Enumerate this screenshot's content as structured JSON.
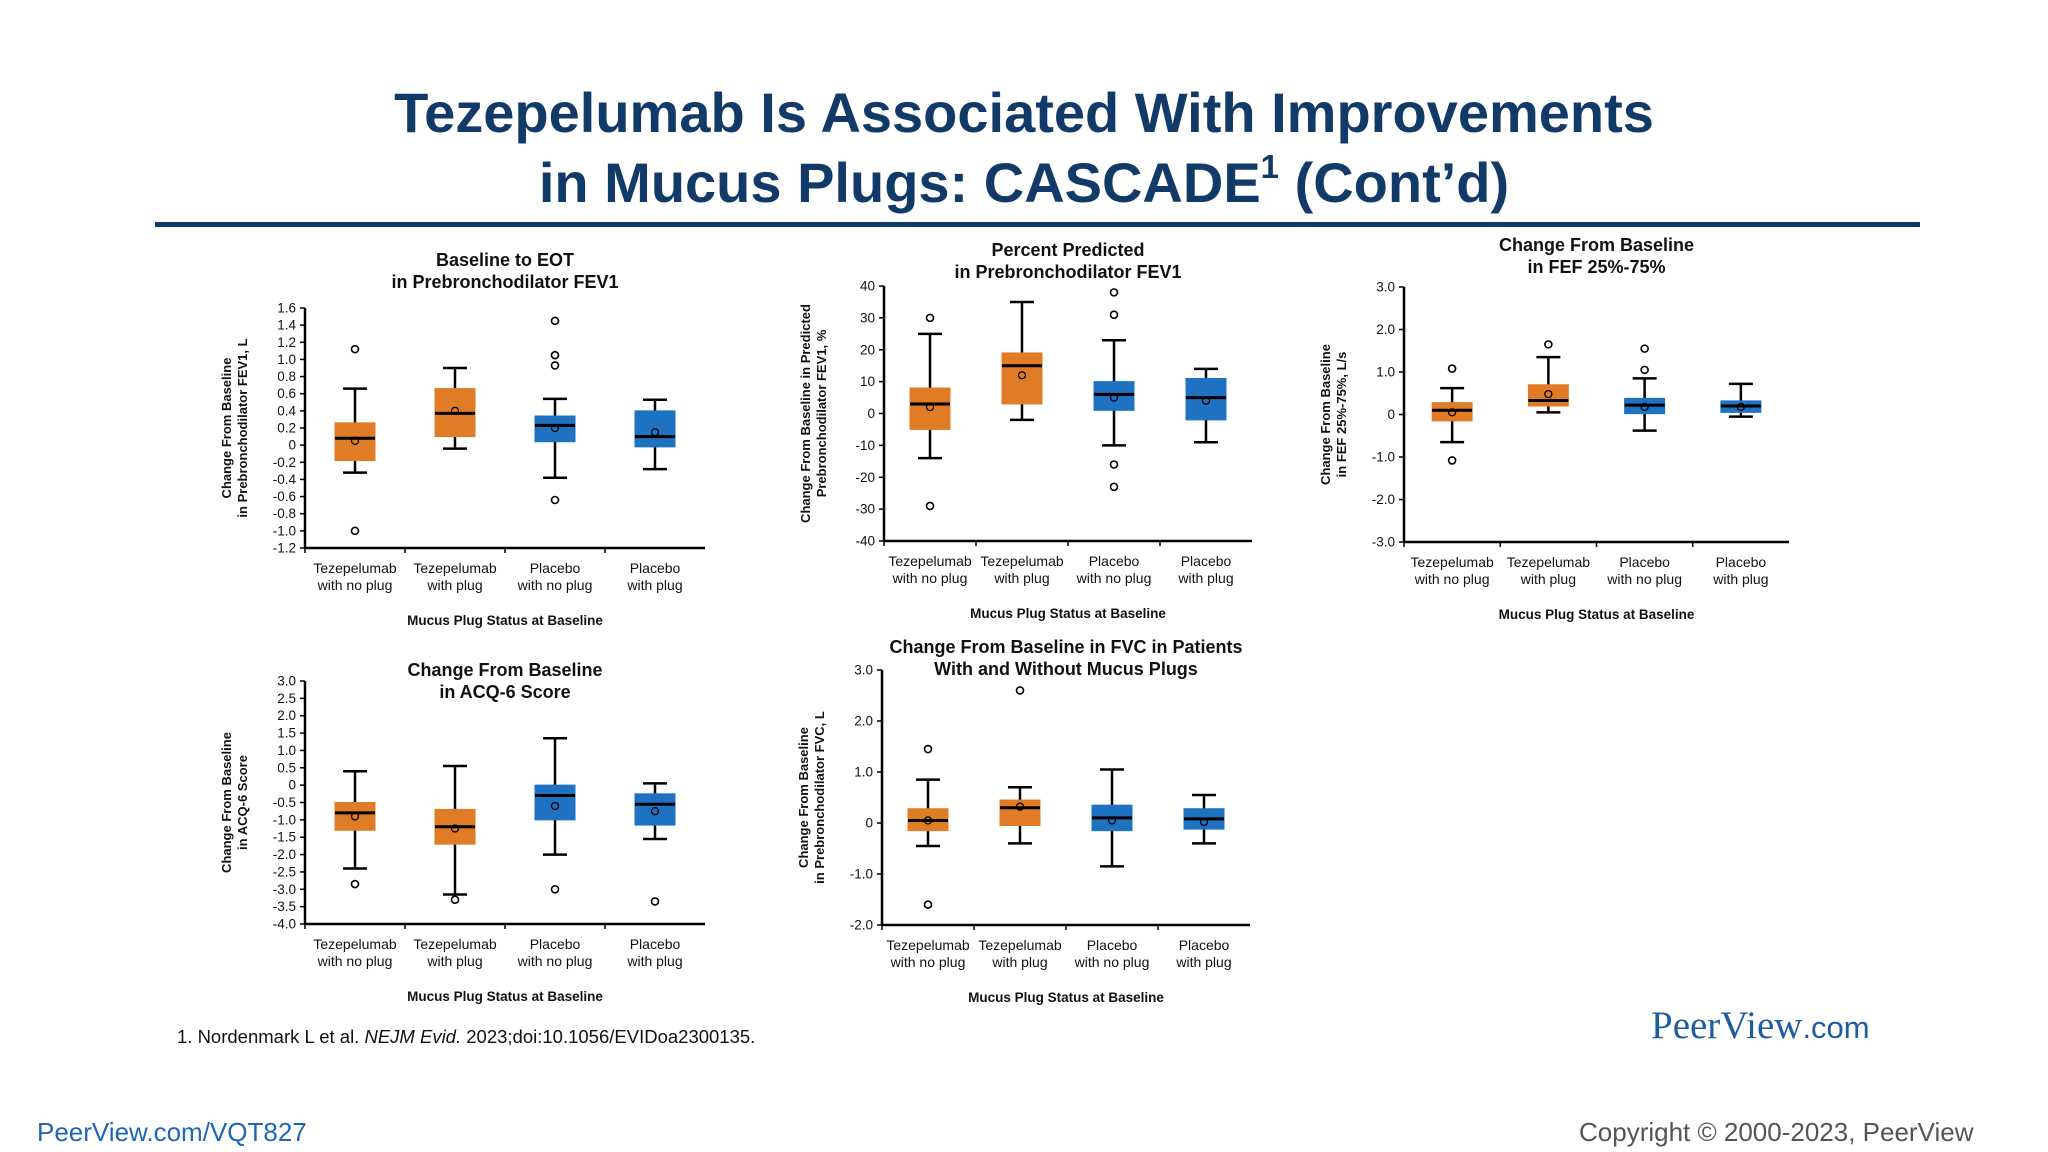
{
  "slide": {
    "title_line1": "Tezepelumab Is Associated With Improvements",
    "title_line2_a": "in Mucus Plugs: CASCADE",
    "title_sup": "1",
    "title_line2_b": " (Cont’d)",
    "footnote_pre": "1. Nordenmark L et al. ",
    "footnote_journal": "NEJM Evid.",
    "footnote_post": " 2023;doi:10.1056/EVIDoa2300135.",
    "url": "PeerView.com/VQT827",
    "copyright": "Copyright © 2000-2023, PeerView",
    "brand_main": "PeerView",
    "brand_domain": ".com"
  },
  "colors": {
    "tezepelumab": "#e07c26",
    "placebo": "#1f72c2",
    "title": "#123a69"
  },
  "chart_data": [
    {
      "type": "box",
      "title": [
        "Baseline to EOT",
        "in Prebronchodilator FEV1"
      ],
      "ylabel": [
        "Change From Baseline",
        "in Prebronchodilator FEV1, L"
      ],
      "xlabel": "Mucus Plug Status at Baseline",
      "categories": [
        [
          "Tezepelumab",
          "with no plug"
        ],
        [
          "Tezepelumab",
          "with plug"
        ],
        [
          "Placebo",
          "with no plug"
        ],
        [
          "Placebo",
          "with plug"
        ]
      ],
      "yticks": [
        "-1.2",
        "-1.0",
        "-0.8",
        "-0.6",
        "-0.4",
        "-0.2",
        "0",
        "0.2",
        "0.4",
        "0.6",
        "0.8",
        "1.0",
        "1.2",
        "1.4",
        "1.6"
      ],
      "ylim": [
        -1.2,
        1.6
      ],
      "boxes": [
        {
          "group": "tezepelumab",
          "whisker_low": -0.32,
          "q1": -0.18,
          "median": 0.08,
          "q3": 0.26,
          "whisker_high": 0.66,
          "mean": 0.05,
          "outliers": [
            1.12,
            -1.0
          ]
        },
        {
          "group": "tezepelumab",
          "whisker_low": -0.04,
          "q1": 0.1,
          "median": 0.37,
          "q3": 0.66,
          "whisker_high": 0.9,
          "mean": 0.4,
          "outliers": []
        },
        {
          "group": "placebo",
          "whisker_low": -0.38,
          "q1": 0.04,
          "median": 0.23,
          "q3": 0.34,
          "whisker_high": 0.54,
          "mean": 0.2,
          "outliers": [
            1.45,
            1.05,
            0.93,
            -0.64
          ]
        },
        {
          "group": "placebo",
          "whisker_low": -0.28,
          "q1": -0.02,
          "median": 0.1,
          "q3": 0.4,
          "whisker_high": 0.53,
          "mean": 0.15,
          "outliers": []
        }
      ]
    },
    {
      "type": "box",
      "title": [
        "Percent Predicted",
        "in Prebronchodilator FEV1"
      ],
      "ylabel": [
        "Change From Baseline in Predicted",
        "Prebronchodilator FEV1, %"
      ],
      "xlabel": "Mucus Plug Status at Baseline",
      "categories": [
        [
          "Tezepelumab",
          "with no plug"
        ],
        [
          "Tezepelumab",
          "with plug"
        ],
        [
          "Placebo",
          "with no plug"
        ],
        [
          "Placebo",
          "with plug"
        ]
      ],
      "yticks": [
        "-40",
        "-30",
        "-20",
        "-10",
        "0",
        "10",
        "20",
        "30",
        "40"
      ],
      "ylim": [
        -40,
        40
      ],
      "boxes": [
        {
          "group": "tezepelumab",
          "whisker_low": -14,
          "q1": -5,
          "median": 3,
          "q3": 8,
          "whisker_high": 25,
          "mean": 2,
          "outliers": [
            30,
            -29
          ]
        },
        {
          "group": "tezepelumab",
          "whisker_low": -2,
          "q1": 3,
          "median": 15,
          "q3": 19,
          "whisker_high": 35,
          "mean": 12,
          "outliers": []
        },
        {
          "group": "placebo",
          "whisker_low": -10,
          "q1": 1,
          "median": 6,
          "q3": 10,
          "whisker_high": 23,
          "mean": 5,
          "outliers": [
            38,
            31,
            -16,
            -23
          ]
        },
        {
          "group": "placebo",
          "whisker_low": -9,
          "q1": -2,
          "median": 5,
          "q3": 11,
          "whisker_high": 14,
          "mean": 4,
          "outliers": []
        }
      ]
    },
    {
      "type": "box",
      "title": [
        "Change From Baseline",
        "in FEF 25%-75%"
      ],
      "ylabel": [
        "Change From Baseline",
        "in FEF 25%-75%, L/s"
      ],
      "xlabel": "Mucus Plug Status at Baseline",
      "categories": [
        [
          "Tezepelumab",
          "with no plug"
        ],
        [
          "Tezepelumab",
          "with plug"
        ],
        [
          "Placebo",
          "with no plug"
        ],
        [
          "Placebo",
          "with plug"
        ]
      ],
      "yticks": [
        "-3.0",
        "-2.0",
        "-1.0",
        "0",
        "1.0",
        "2.0",
        "3.0"
      ],
      "ylim": [
        -3,
        3
      ],
      "boxes": [
        {
          "group": "tezepelumab",
          "whisker_low": -0.65,
          "q1": -0.15,
          "median": 0.1,
          "q3": 0.28,
          "whisker_high": 0.62,
          "mean": 0.05,
          "outliers": [
            1.08,
            -1.08
          ]
        },
        {
          "group": "tezepelumab",
          "whisker_low": 0.05,
          "q1": 0.2,
          "median": 0.33,
          "q3": 0.7,
          "whisker_high": 1.35,
          "mean": 0.48,
          "outliers": [
            1.65
          ]
        },
        {
          "group": "placebo",
          "whisker_low": -0.38,
          "q1": 0.02,
          "median": 0.22,
          "q3": 0.38,
          "whisker_high": 0.85,
          "mean": 0.18,
          "outliers": [
            1.55,
            1.05
          ]
        },
        {
          "group": "placebo",
          "whisker_low": -0.05,
          "q1": 0.05,
          "median": 0.2,
          "q3": 0.32,
          "whisker_high": 0.72,
          "mean": 0.18,
          "outliers": []
        }
      ]
    },
    {
      "type": "box",
      "title": [
        "Change From Baseline",
        "in ACQ-6 Score"
      ],
      "ylabel": [
        "Change From Baseline",
        "in ACQ-6 Score"
      ],
      "xlabel": "Mucus Plug Status at Baseline",
      "categories": [
        [
          "Tezepelumab",
          "with no plug"
        ],
        [
          "Tezepelumab",
          "with plug"
        ],
        [
          "Placebo",
          "with no plug"
        ],
        [
          "Placebo",
          "with plug"
        ]
      ],
      "yticks": [
        "-4.0",
        "-3.5",
        "-3.0",
        "-2.5",
        "-2.0",
        "-1.5",
        "-1.0",
        "-0.5",
        "0",
        "0.5",
        "1.0",
        "1.5",
        "2.0",
        "2.5",
        "3.0"
      ],
      "ylim": [
        -4,
        3
      ],
      "boxes": [
        {
          "group": "tezepelumab",
          "whisker_low": -2.4,
          "q1": -1.3,
          "median": -0.8,
          "q3": -0.5,
          "whisker_high": 0.4,
          "mean": -0.9,
          "outliers": [
            -2.85
          ]
        },
        {
          "group": "tezepelumab",
          "whisker_low": -3.15,
          "q1": -1.7,
          "median": -1.2,
          "q3": -0.7,
          "whisker_high": 0.55,
          "mean": -1.25,
          "outliers": [
            -3.3
          ]
        },
        {
          "group": "placebo",
          "whisker_low": -2.0,
          "q1": -1.0,
          "median": -0.3,
          "q3": 0.0,
          "whisker_high": 1.35,
          "mean": -0.6,
          "outliers": [
            -3.0
          ]
        },
        {
          "group": "placebo",
          "whisker_low": -1.55,
          "q1": -1.15,
          "median": -0.55,
          "q3": -0.25,
          "whisker_high": 0.05,
          "mean": -0.75,
          "outliers": [
            -3.35
          ]
        }
      ]
    },
    {
      "type": "box",
      "title": [
        "Change From Baseline in FVC in Patients",
        "With and Without Mucus Plugs"
      ],
      "ylabel": [
        "Change From Baseline",
        "in Prebronchodilator FVC, L"
      ],
      "xlabel": "Mucus Plug Status at Baseline",
      "categories": [
        [
          "Tezepelumab",
          "with no plug"
        ],
        [
          "Tezepelumab",
          "with plug"
        ],
        [
          "Placebo",
          "with no plug"
        ],
        [
          "Placebo",
          "with plug"
        ]
      ],
      "yticks": [
        "-2.0",
        "-1.0",
        "0",
        "1.0",
        "2.0",
        "3.0"
      ],
      "ylim": [
        -2,
        3
      ],
      "boxes": [
        {
          "group": "tezepelumab",
          "whisker_low": -0.45,
          "q1": -0.15,
          "median": 0.05,
          "q3": 0.28,
          "whisker_high": 0.85,
          "mean": 0.05,
          "outliers": [
            1.45,
            -1.6
          ]
        },
        {
          "group": "tezepelumab",
          "whisker_low": -0.4,
          "q1": -0.05,
          "median": 0.3,
          "q3": 0.45,
          "whisker_high": 0.7,
          "mean": 0.32,
          "outliers": [
            2.6
          ]
        },
        {
          "group": "placebo",
          "whisker_low": -0.85,
          "q1": -0.15,
          "median": 0.1,
          "q3": 0.35,
          "whisker_high": 1.05,
          "mean": 0.05,
          "outliers": []
        },
        {
          "group": "placebo",
          "whisker_low": -0.4,
          "q1": -0.12,
          "median": 0.08,
          "q3": 0.28,
          "whisker_high": 0.55,
          "mean": 0.02,
          "outliers": []
        }
      ]
    }
  ]
}
